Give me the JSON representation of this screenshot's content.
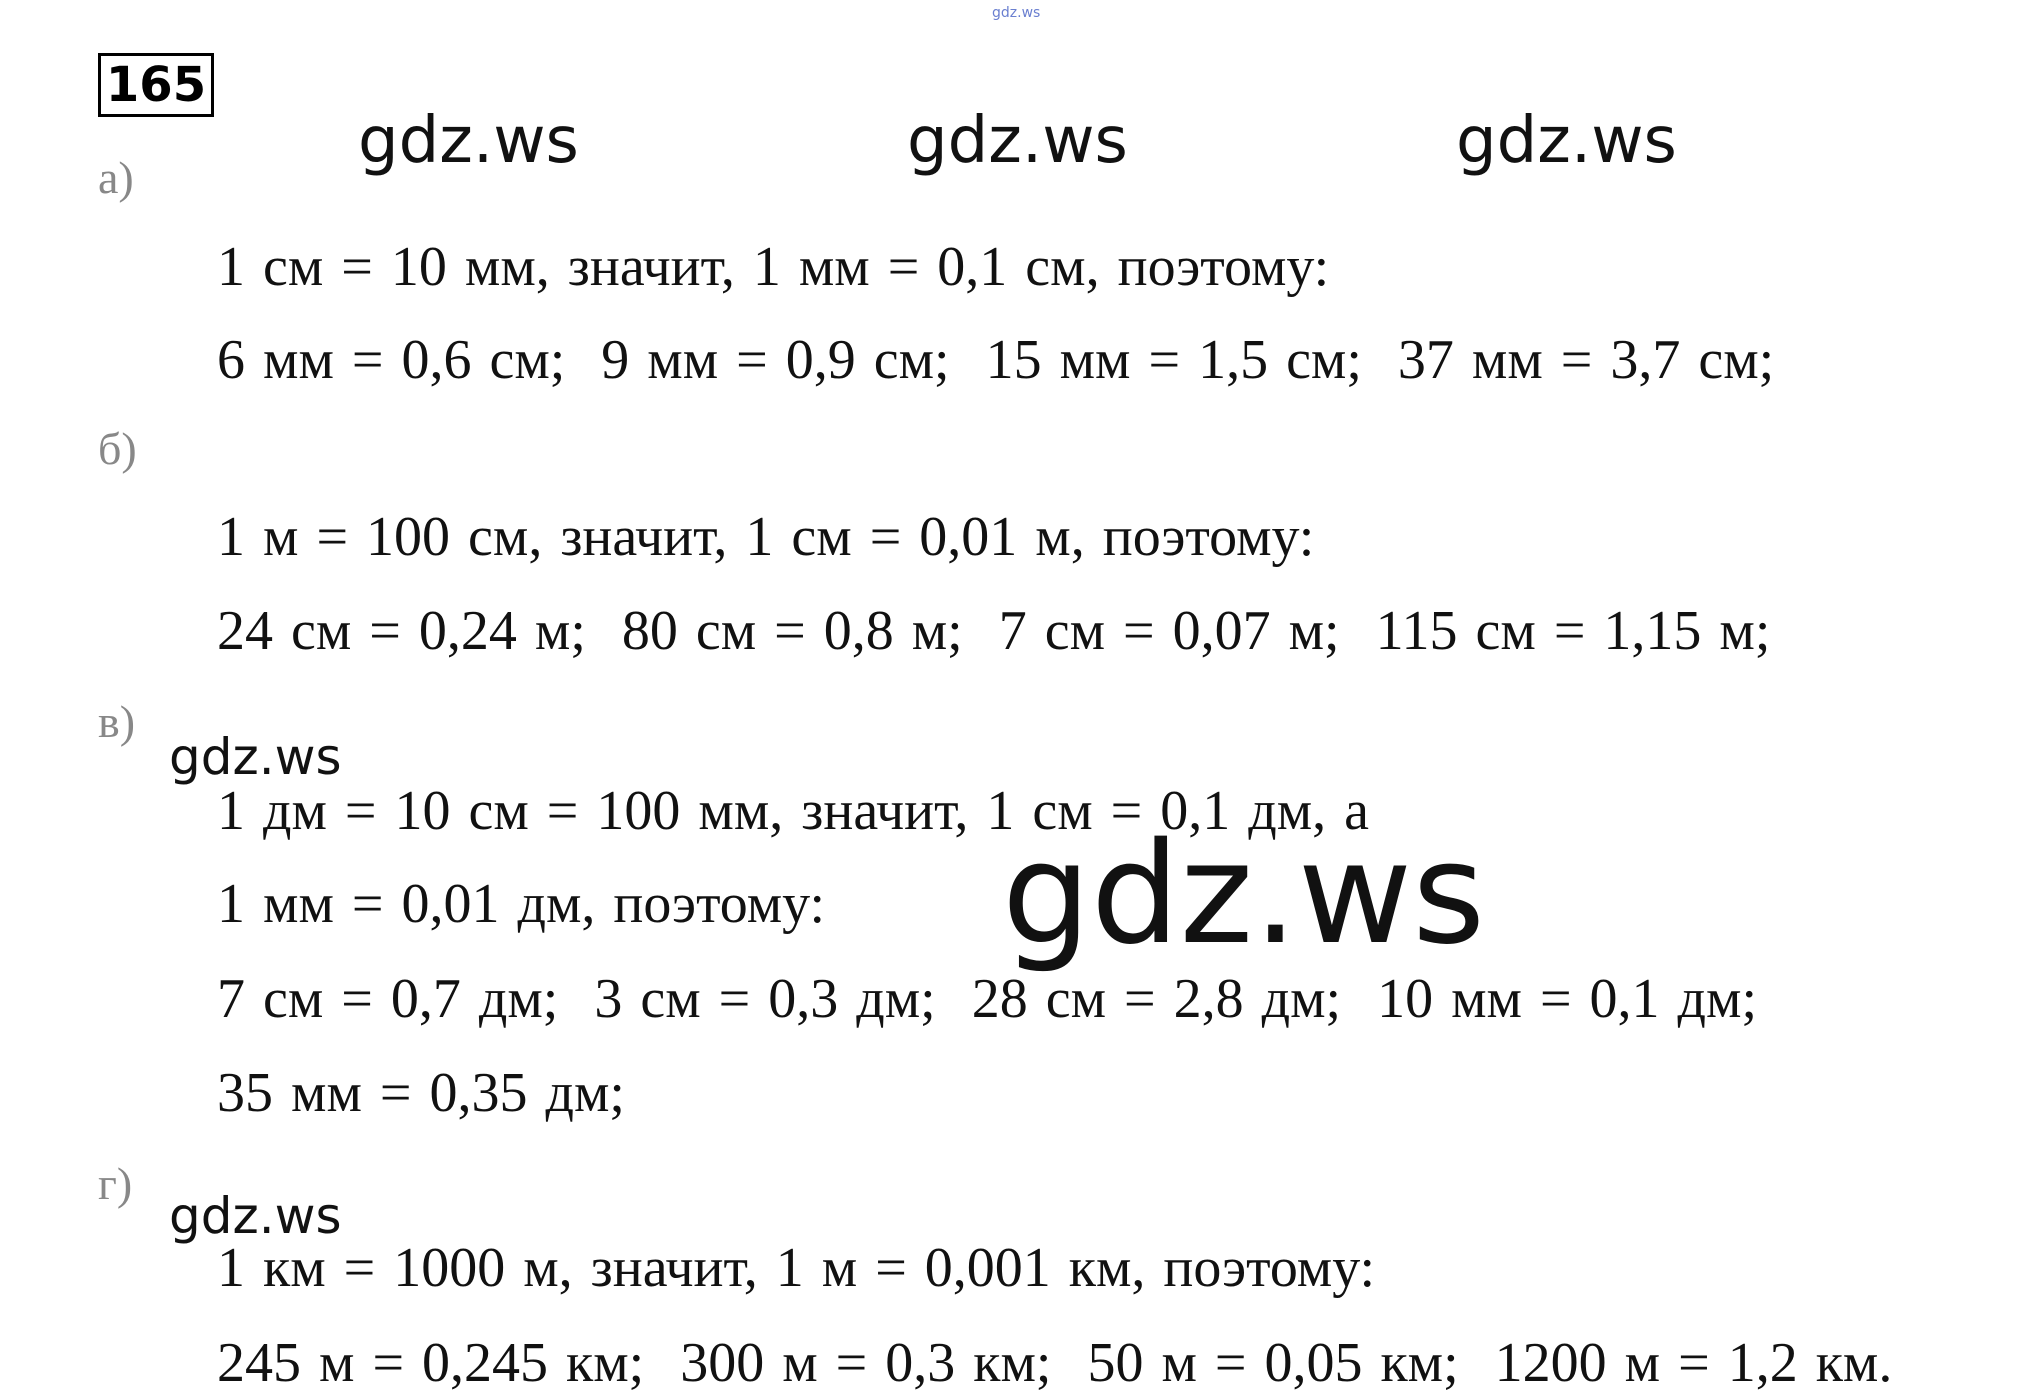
{
  "top_mark": "gdz.ws",
  "number": "165",
  "watermarks": [
    "gdz.ws",
    "gdz.ws",
    "gdz.ws",
    "gdz.ws",
    "gdz.ws",
    "gdz.ws"
  ],
  "parts": [
    {
      "label": "а)",
      "lines": [
        "1 см = 10 мм, значит, 1 мм = 0,1 см, поэтому:",
        "6 мм = 0,6 см;  9 мм = 0,9 см;  15 мм = 1,5 см;  37 мм = 3,7 см;"
      ]
    },
    {
      "label": "б)",
      "lines": [
        "1 м = 100 см, значит, 1 см = 0,01 м, поэтому:",
        "24 см = 0,24 м;  80 см = 0,8 м;  7 см = 0,07 м;  115 см = 1,15 м;"
      ]
    },
    {
      "label": "в)",
      "lines": [
        "1 дм = 10 см = 100 мм, значит, 1 см = 0,1 дм, а",
        "1 мм = 0,01 дм, поэтому:",
        "7 см = 0,7 дм;  3 см = 0,3 дм;  28 см = 2,8 дм;  10 мм = 0,1 дм;",
        "35 мм = 0,35 дм;"
      ]
    },
    {
      "label": "г)",
      "lines": [
        "1 км = 1000 м, значит, 1 м = 0,001 км, поэтому:",
        "245 м = 0,245 км;  300 м = 0,3 км;  50 м = 0,05 км;  1200 м = 1,2 км."
      ]
    }
  ]
}
